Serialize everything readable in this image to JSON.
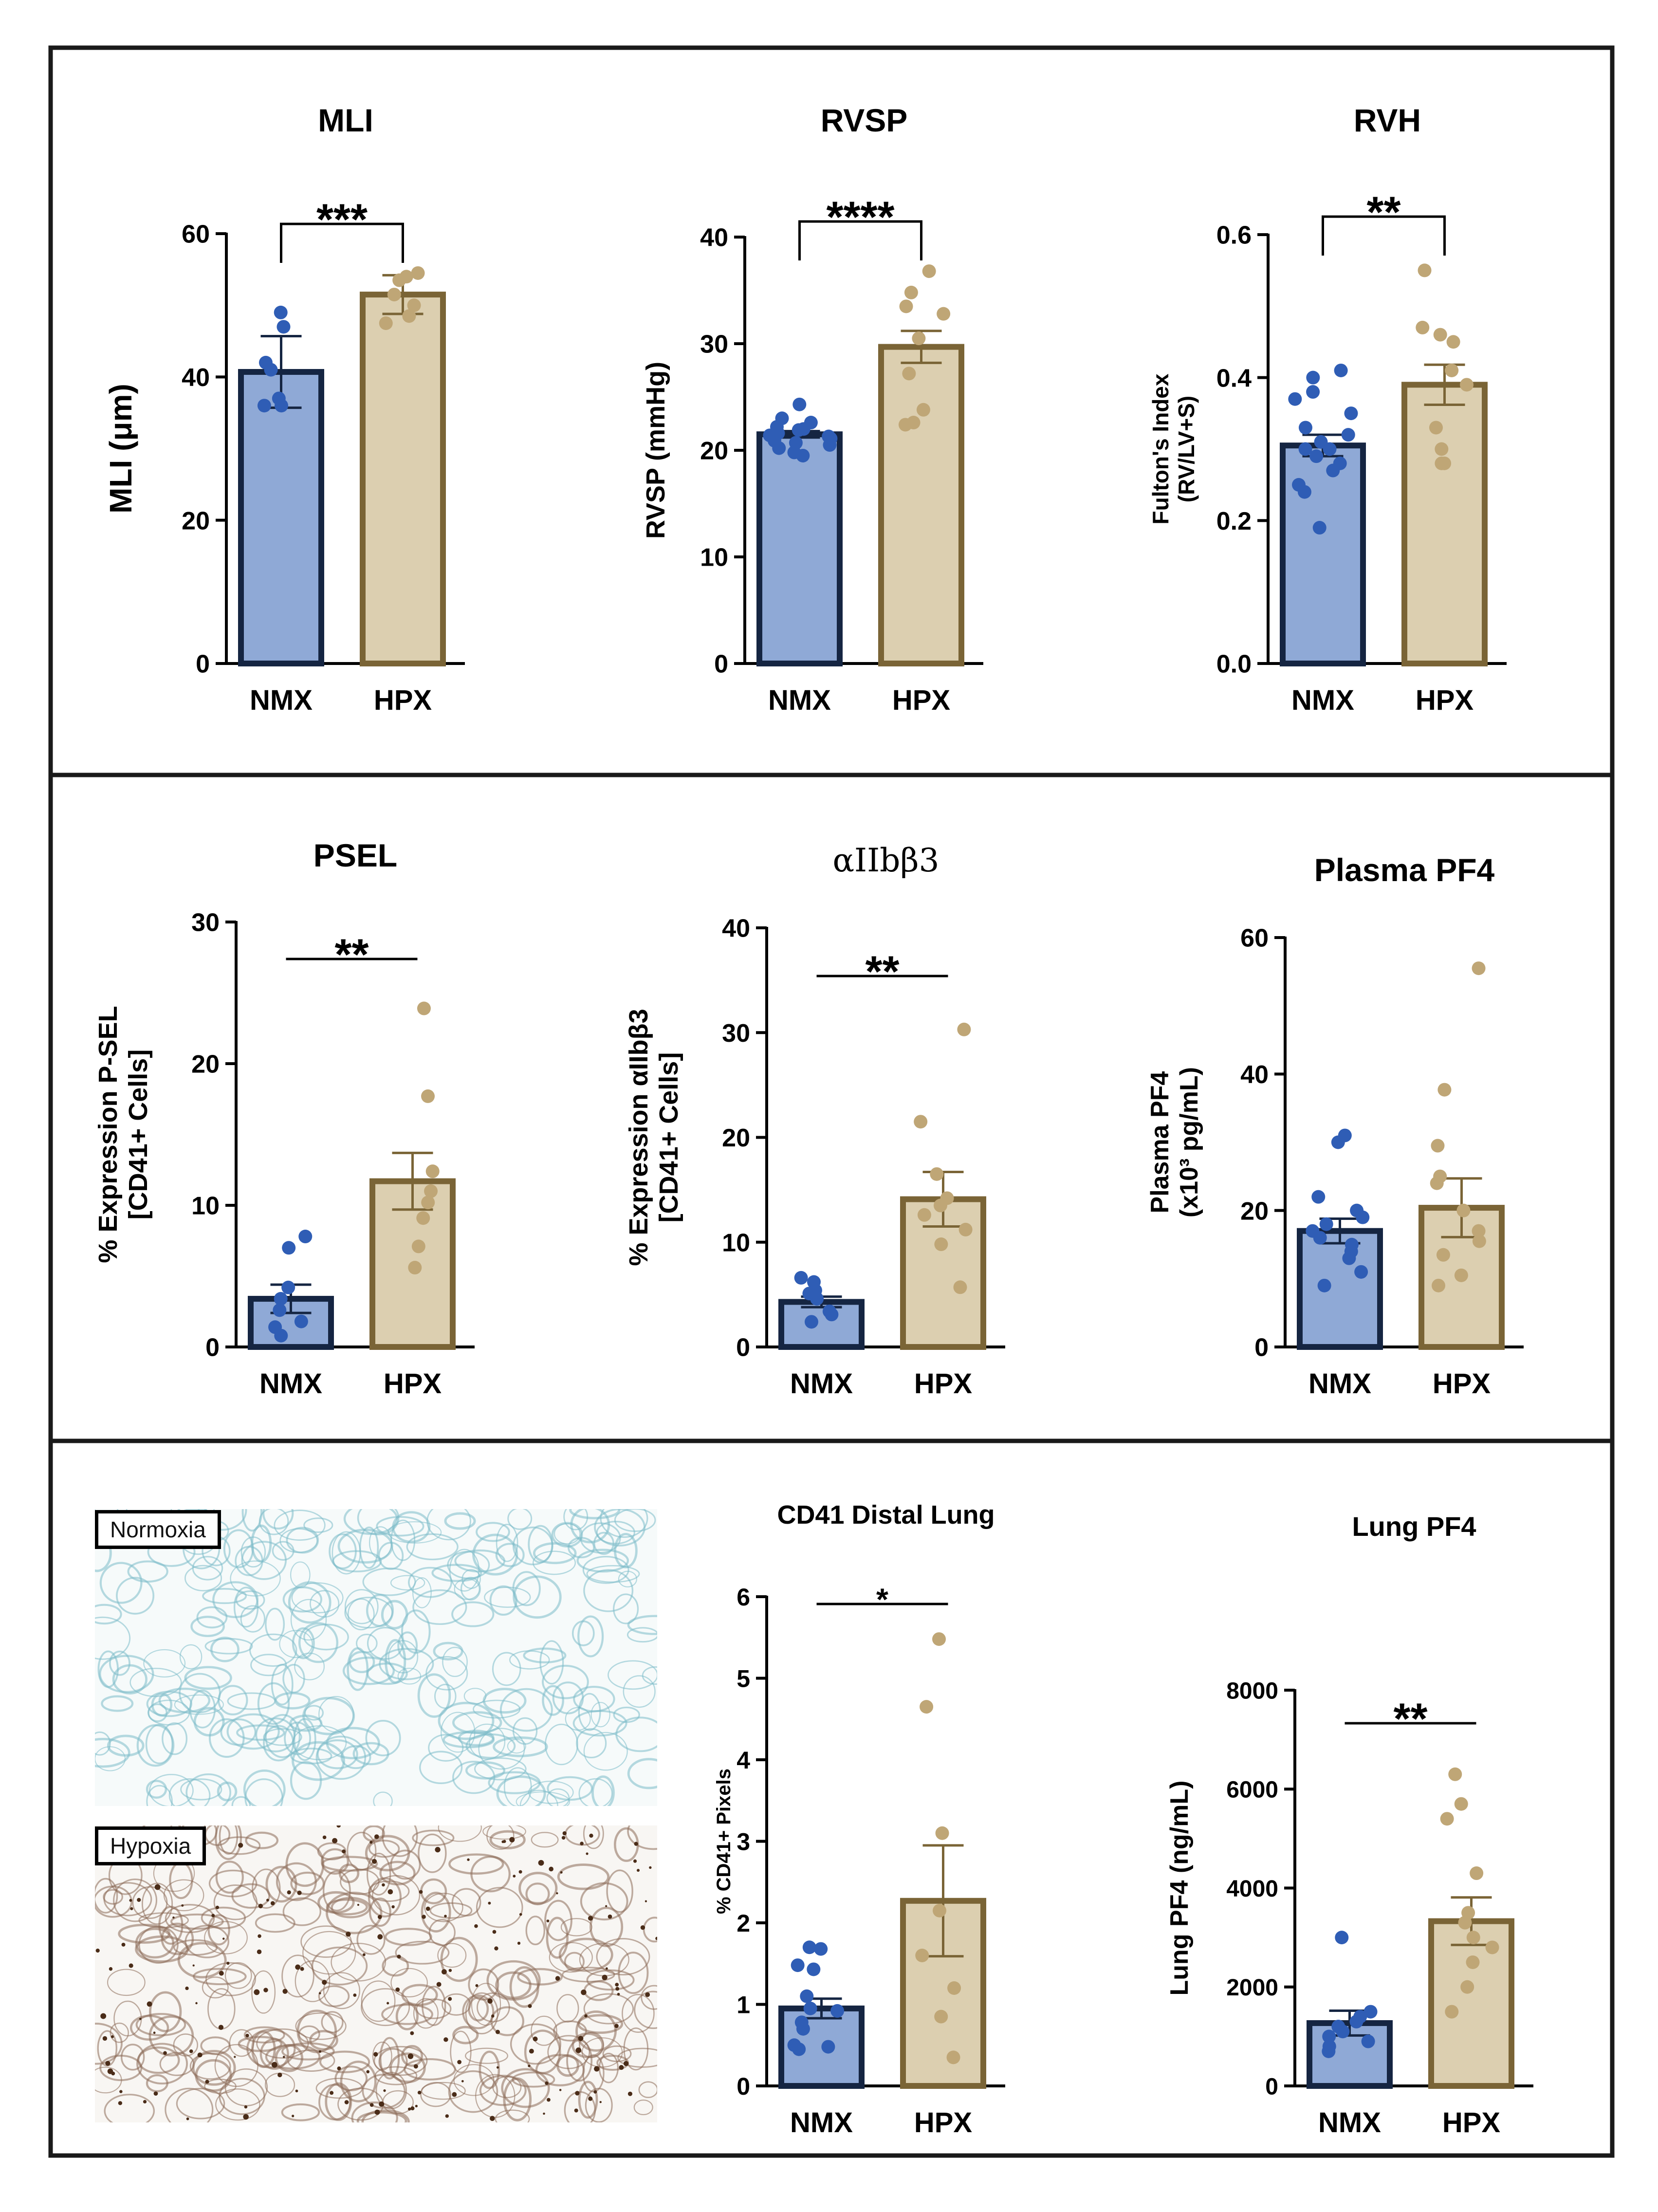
{
  "colors": {
    "nmx_fill": "#8fa9d6",
    "nmx_edge": "#152542",
    "nmx_dot": "#2f5db5",
    "hpx_fill": "#dccfb0",
    "hpx_edge": "#7a6436",
    "hpx_dot": "#bfa676",
    "normoxia_stain": "#7bbcc8",
    "hypoxia_stain": "#8b6a55",
    "stain_dark": "#4a2c18"
  },
  "micrographs": {
    "normoxia_label": "Normoxia",
    "hypoxia_label": "Hypoxia"
  },
  "chart_data": [
    {
      "id": "mli",
      "type": "bar",
      "title": "MLI",
      "ylabel": "MLI (μm)",
      "categories": [
        "NMX",
        "HPX"
      ],
      "ylim": [
        0,
        60
      ],
      "yticks": [
        "0",
        "20",
        "40",
        "60"
      ],
      "means": [
        40.7,
        51.5
      ],
      "sem": [
        5.0,
        2.7
      ],
      "points": [
        [
          49,
          47,
          42,
          41,
          37,
          36,
          36
        ],
        [
          54.5,
          54,
          53.5,
          51.5,
          50,
          48.5,
          47.5
        ]
      ],
      "significance": "***",
      "bracket": true
    },
    {
      "id": "rvsp",
      "type": "bar",
      "title": "RVSP",
      "ylabel": "RVSP (mmHg)",
      "categories": [
        "NMX",
        "HPX"
      ],
      "ylim": [
        0,
        40
      ],
      "yticks": [
        "0",
        "10",
        "20",
        "30",
        "40"
      ],
      "means": [
        21.5,
        29.7
      ],
      "sem": [
        0.3,
        1.5
      ],
      "points": [
        [
          24.3,
          23,
          22.6,
          22.2,
          22,
          21.9,
          21.6,
          21.4,
          21.3,
          21.1,
          20.9,
          20.7,
          20.5,
          20.2,
          19.8,
          19.5
        ],
        [
          36.8,
          34.8,
          33.5,
          32.8,
          30.5,
          27.2,
          23.8,
          22.6,
          22.4
        ]
      ],
      "significance": "****",
      "bracket": true
    },
    {
      "id": "rvh",
      "type": "bar",
      "title": "RVH",
      "ylabel": "Fulton's Index (RV/LV+S)",
      "categories": [
        "NMX",
        "HPX"
      ],
      "ylim": [
        0,
        0.6
      ],
      "yticks": [
        "0.0",
        "0.2",
        "0.4",
        "0.6"
      ],
      "means": [
        0.305,
        0.39
      ],
      "sem": [
        0.015,
        0.028
      ],
      "points": [
        [
          0.41,
          0.4,
          0.38,
          0.37,
          0.35,
          0.33,
          0.32,
          0.31,
          0.3,
          0.3,
          0.29,
          0.28,
          0.27,
          0.25,
          0.24,
          0.19
        ],
        [
          0.55,
          0.47,
          0.46,
          0.45,
          0.41,
          0.39,
          0.33,
          0.3,
          0.28,
          0.28
        ]
      ],
      "significance": "**",
      "bracket": true
    },
    {
      "id": "psel",
      "type": "bar",
      "title": "PSEL",
      "ylabel": "% Expression P-SEL [CD41+ Cells]",
      "categories": [
        "NMX",
        "HPX"
      ],
      "ylim": [
        0,
        30
      ],
      "yticks": [
        "0",
        "10",
        "20",
        "30"
      ],
      "means": [
        3.4,
        11.7
      ],
      "sem": [
        1.0,
        2.0
      ],
      "points": [
        [
          7.8,
          7,
          4.2,
          3.4,
          2.6,
          1.8,
          1.4,
          0.8
        ],
        [
          23.9,
          17.7,
          12.4,
          11,
          10.2,
          9.1,
          7.1,
          5.6
        ]
      ],
      "significance": "**",
      "bracket": false
    },
    {
      "id": "aiib",
      "type": "bar",
      "title": "αIIbβ3",
      "ylabel": "% Expression αIIbβ3 [CD41+ Cells]",
      "categories": [
        "NMX",
        "HPX"
      ],
      "ylim": [
        0,
        40
      ],
      "yticks": [
        "0",
        "10",
        "20",
        "30",
        "40"
      ],
      "means": [
        4.3,
        14.1
      ],
      "sem": [
        0.5,
        2.6
      ],
      "points": [
        [
          6.6,
          6.2,
          5.4,
          5.1,
          4.6,
          3.4,
          3.1,
          2.4
        ],
        [
          30.3,
          21.5,
          16.5,
          14.2,
          13.5,
          12.6,
          11.2,
          9.8,
          5.7
        ]
      ],
      "significance": "**",
      "bracket": false
    },
    {
      "id": "pf4_plasma",
      "type": "bar",
      "title": "Plasma PF4",
      "ylabel": "Plasma PF4 (x10³ pg/mL)",
      "categories": [
        "NMX",
        "HPX"
      ],
      "ylim": [
        0,
        60
      ],
      "yticks": [
        "0",
        "20",
        "40",
        "60"
      ],
      "means": [
        17,
        20.4
      ],
      "sem": [
        1.8,
        4.3
      ],
      "points": [
        [
          31,
          30,
          22,
          20,
          19,
          18,
          17,
          16,
          15,
          14,
          13,
          11,
          9
        ],
        [
          55.5,
          37.7,
          29.5,
          25,
          24,
          20,
          17,
          15.5,
          13.5,
          10.5,
          9
        ]
      ],
      "significance": "",
      "bracket": false
    },
    {
      "id": "cd41_lung",
      "type": "bar",
      "title": "CD41 Distal Lung",
      "ylabel": "% CD41+ Pixels",
      "categories": [
        "NMX",
        "HPX"
      ],
      "ylim": [
        0,
        6
      ],
      "yticks": [
        "0",
        "1",
        "2",
        "3",
        "4",
        "5",
        "6"
      ],
      "means": [
        0.95,
        2.27
      ],
      "sem": [
        0.12,
        0.68
      ],
      "points": [
        [
          1.7,
          1.68,
          1.48,
          1.43,
          1.1,
          0.95,
          0.92,
          0.78,
          0.7,
          0.5,
          0.48,
          0.45
        ],
        [
          5.48,
          4.65,
          3.1,
          2.15,
          1.6,
          1.2,
          0.85,
          0.35
        ]
      ],
      "significance": "*",
      "bracket": false
    },
    {
      "id": "pf4_lung",
      "type": "bar",
      "title": "Lung PF4",
      "ylabel": "Lung PF4 (ng/mL)",
      "categories": [
        "NMX",
        "HPX"
      ],
      "ylim": [
        0,
        8000
      ],
      "yticks": [
        "0",
        "2000",
        "4000",
        "6000",
        "8000"
      ],
      "means": [
        1270,
        3330
      ],
      "sem": [
        250,
        480
      ],
      "points": [
        [
          3000,
          1500,
          1400,
          1300,
          1200,
          1100,
          1000,
          900,
          800,
          700
        ],
        [
          6300,
          5700,
          5400,
          4300,
          3500,
          3300,
          3000,
          2800,
          2500,
          2000,
          1500
        ]
      ],
      "significance": "**",
      "bracket": false
    }
  ]
}
